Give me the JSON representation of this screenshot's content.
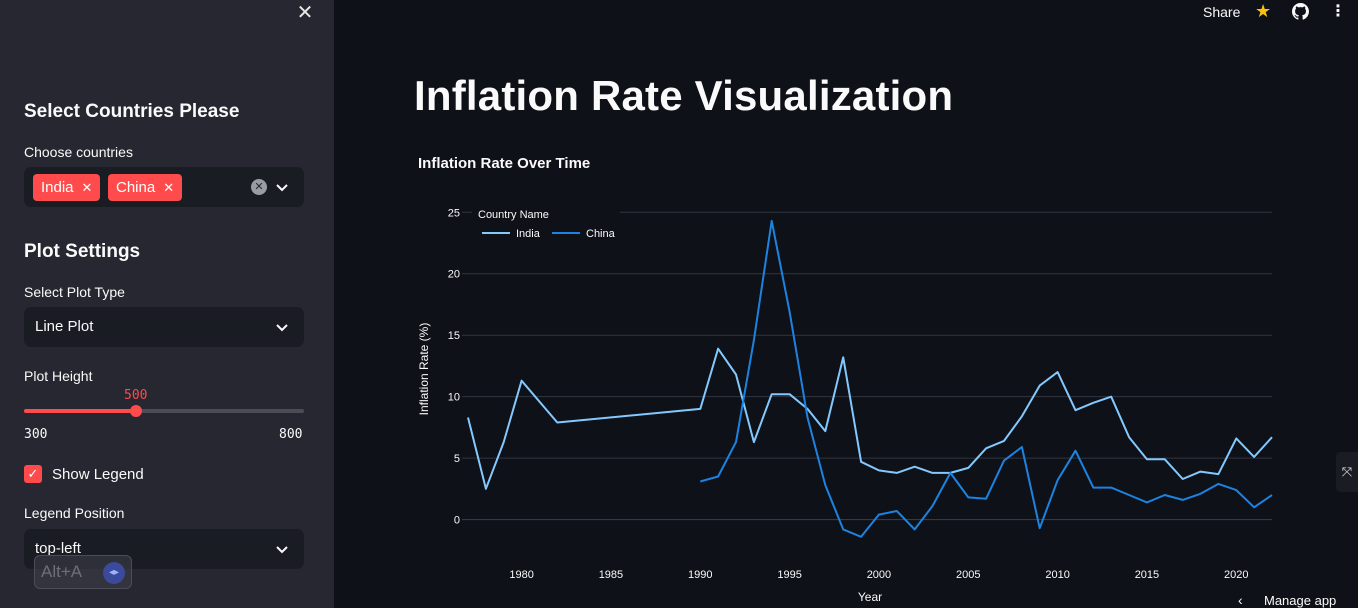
{
  "sidebar": {
    "close_icon": "close-icon",
    "section1_title": "Select Countries Please",
    "countries_label": "Choose countries",
    "selected_countries": [
      "India",
      "China"
    ],
    "section2_title": "Plot Settings",
    "plot_type_label": "Select Plot Type",
    "plot_type_value": "Line Plot",
    "plot_height_label": "Plot Height",
    "plot_height_value": "500",
    "plot_height_min": "300",
    "plot_height_max": "800",
    "show_legend_label": "Show Legend",
    "show_legend_checked": true,
    "legend_position_label": "Legend Position",
    "legend_position_value": "top-left",
    "alt_badge": "Alt+A"
  },
  "header": {
    "share": "Share",
    "star_icon": "star-icon",
    "github_icon": "github-icon",
    "menu_icon": "more-vertical-icon"
  },
  "main": {
    "page_title": "Inflation Rate Visualization"
  },
  "footer": {
    "manage_app": "Manage app"
  },
  "colors": {
    "india": "#83c9ff",
    "china": "#1c83e1",
    "accent": "#ff4b4b"
  },
  "chart_data": {
    "type": "line",
    "title": "Inflation Rate Over Time",
    "xlabel": "Year",
    "ylabel": "Inflation Rate (%)",
    "xlim": [
      1977,
      2022
    ],
    "ylim": [
      -1.5,
      26
    ],
    "x_ticks": [
      1980,
      1985,
      1990,
      1995,
      2000,
      2005,
      2010,
      2015,
      2020
    ],
    "y_ticks": [
      0,
      5,
      10,
      15,
      20,
      25
    ],
    "legend_title": "Country Name",
    "legend_position": "top-left",
    "series": [
      {
        "name": "India",
        "x": [
          1977,
          1978,
          1979,
          1980,
          1982,
          1990,
          1991,
          1992,
          1993,
          1994,
          1995,
          1996,
          1997,
          1998,
          1999,
          2000,
          2001,
          2002,
          2003,
          2004,
          2005,
          2006,
          2007,
          2008,
          2009,
          2010,
          2011,
          2012,
          2013,
          2014,
          2015,
          2016,
          2017,
          2018,
          2019,
          2020,
          2021,
          2022
        ],
        "values": [
          8.3,
          2.5,
          6.3,
          11.3,
          7.9,
          9.0,
          13.9,
          11.8,
          6.3,
          10.2,
          10.2,
          9.0,
          7.2,
          13.2,
          4.7,
          4.0,
          3.8,
          4.3,
          3.8,
          3.8,
          4.2,
          5.8,
          6.4,
          8.4,
          10.9,
          12.0,
          8.9,
          9.5,
          10.0,
          6.7,
          4.9,
          4.9,
          3.3,
          3.9,
          3.7,
          6.6,
          5.1,
          6.7
        ]
      },
      {
        "name": "China",
        "x": [
          1990,
          1991,
          1992,
          1993,
          1994,
          1995,
          1996,
          1997,
          1998,
          1999,
          2000,
          2001,
          2002,
          2003,
          2004,
          2005,
          2006,
          2007,
          2008,
          2009,
          2010,
          2011,
          2012,
          2013,
          2014,
          2015,
          2016,
          2017,
          2018,
          2019,
          2020,
          2021,
          2022
        ],
        "values": [
          3.1,
          3.5,
          6.3,
          14.6,
          24.3,
          16.9,
          8.3,
          2.8,
          -0.8,
          -1.4,
          0.4,
          0.7,
          -0.8,
          1.1,
          3.8,
          1.8,
          1.7,
          4.8,
          5.9,
          -0.7,
          3.2,
          5.6,
          2.6,
          2.6,
          2.0,
          1.4,
          2.0,
          1.6,
          2.1,
          2.9,
          2.4,
          1.0,
          2.0
        ]
      }
    ]
  }
}
